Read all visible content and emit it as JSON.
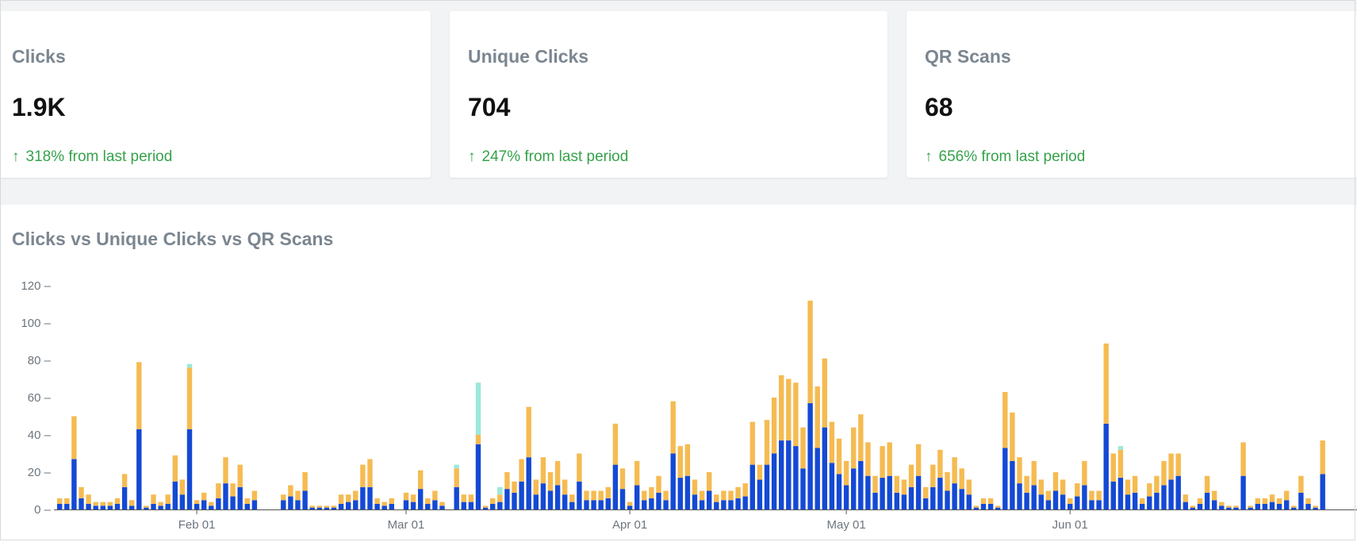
{
  "cards": [
    {
      "title": "Clicks",
      "value": "1.9K",
      "delta_arrow": "↑",
      "delta_text": "318% from last period"
    },
    {
      "title": "Unique Clicks",
      "value": "704",
      "delta_arrow": "↑",
      "delta_text": "247% from last period"
    },
    {
      "title": "QR Scans",
      "value": "68",
      "delta_arrow": "↑",
      "delta_text": "656% from last period"
    }
  ],
  "chart_title": "Clicks vs Unique Clicks vs QR Scans",
  "colors": {
    "unique": "#1449d4",
    "clicks": "#f5bb52",
    "qr": "#9be8dc",
    "delta_green": "#35a24b",
    "muted_text": "#7b8690"
  },
  "chart_data": {
    "type": "bar",
    "stacked": true,
    "title": "Clicks vs Unique Clicks vs QR Scans",
    "x_start": "2024-01-13",
    "x_end": "2024-06-24",
    "x_tick_labels": [
      "Feb 01",
      "Mar 01",
      "Apr 01",
      "May 01",
      "Jun 01"
    ],
    "x_tick_dates": [
      "2024-02-01",
      "2024-03-01",
      "2024-04-01",
      "2024-05-01",
      "2024-06-01"
    ],
    "y_ticks": [
      0,
      20,
      40,
      60,
      80,
      100,
      120
    ],
    "ylim": [
      0,
      120
    ],
    "series": [
      {
        "key": "unique",
        "values": [
          3,
          3,
          27,
          6,
          3,
          2,
          2,
          2,
          3,
          12,
          2,
          43,
          1,
          3,
          2,
          3,
          15,
          8,
          43,
          3,
          5,
          2,
          6,
          14,
          7,
          12,
          3,
          5,
          0,
          0,
          0,
          5,
          7,
          5,
          10,
          1,
          1,
          1,
          1,
          3,
          4,
          5,
          12,
          12,
          3,
          2,
          3,
          0,
          5,
          4,
          11,
          3,
          5,
          2,
          0,
          12,
          4,
          4,
          35,
          1,
          3,
          4,
          11,
          9,
          15,
          28,
          8,
          14,
          10,
          13,
          8,
          4,
          15,
          5,
          5,
          5,
          6,
          24,
          11,
          2,
          13,
          5,
          6,
          9,
          5,
          30,
          17,
          18,
          8,
          5,
          10,
          4,
          5,
          5,
          6,
          7,
          24,
          16,
          24,
          30,
          37,
          37,
          34,
          22,
          57,
          33,
          44,
          25,
          19,
          13,
          22,
          26,
          18,
          9,
          17,
          18,
          9,
          8,
          12,
          18,
          6,
          12,
          17,
          10,
          14,
          11,
          8,
          1,
          3,
          3,
          1,
          33,
          26,
          14,
          9,
          13,
          8,
          5,
          10,
          8,
          3,
          7,
          13,
          5,
          5,
          46,
          15,
          17,
          8,
          9,
          3,
          7,
          9,
          13,
          16,
          18,
          4,
          1,
          3,
          9,
          5,
          2,
          1,
          1,
          18,
          1,
          3,
          3,
          4,
          3,
          5,
          1,
          9,
          3,
          1,
          19
        ],
        "name": ""
      },
      {
        "key": "clicks",
        "values": [
          3,
          3,
          23,
          6,
          5,
          2,
          2,
          2,
          3,
          7,
          3,
          36,
          1,
          5,
          2,
          5,
          14,
          8,
          33,
          2,
          4,
          2,
          8,
          14,
          7,
          12,
          3,
          5,
          0,
          0,
          0,
          3,
          6,
          5,
          10,
          1,
          1,
          1,
          1,
          5,
          4,
          5,
          12,
          15,
          3,
          2,
          3,
          0,
          4,
          4,
          10,
          3,
          5,
          2,
          0,
          10,
          4,
          4,
          5,
          1,
          3,
          4,
          9,
          6,
          12,
          27,
          8,
          14,
          10,
          13,
          8,
          4,
          15,
          5,
          5,
          5,
          6,
          22,
          11,
          2,
          13,
          5,
          6,
          9,
          5,
          28,
          17,
          17,
          8,
          5,
          10,
          4,
          5,
          5,
          6,
          7,
          23,
          8,
          24,
          30,
          35,
          33,
          34,
          22,
          55,
          33,
          37,
          22,
          19,
          13,
          22,
          25,
          18,
          9,
          17,
          18,
          9,
          8,
          12,
          17,
          6,
          12,
          15,
          10,
          14,
          11,
          8,
          1,
          3,
          3,
          1,
          30,
          26,
          14,
          9,
          13,
          8,
          5,
          10,
          8,
          3,
          7,
          13,
          5,
          5,
          43,
          15,
          15,
          8,
          9,
          3,
          7,
          9,
          13,
          14,
          12,
          4,
          1,
          3,
          9,
          5,
          2,
          1,
          1,
          18,
          1,
          3,
          3,
          4,
          3,
          5,
          1,
          9,
          3,
          1,
          18
        ],
        "name": ""
      },
      {
        "key": "qr",
        "values": [
          0,
          0,
          0,
          0,
          0,
          0,
          0,
          0,
          0,
          0,
          0,
          0,
          0,
          0,
          0,
          0,
          0,
          0,
          2,
          0,
          0,
          0,
          0,
          0,
          0,
          0,
          0,
          0,
          0,
          0,
          0,
          0,
          0,
          0,
          0,
          0,
          0,
          0,
          0,
          0,
          0,
          0,
          0,
          0,
          0,
          0,
          0,
          0,
          0,
          0,
          0,
          0,
          0,
          0,
          0,
          2,
          0,
          0,
          28,
          0,
          0,
          4,
          0,
          0,
          0,
          0,
          0,
          0,
          0,
          0,
          0,
          0,
          0,
          0,
          0,
          0,
          0,
          0,
          0,
          0,
          0,
          0,
          0,
          0,
          0,
          0,
          0,
          0,
          0,
          0,
          0,
          0,
          0,
          0,
          0,
          0,
          0,
          0,
          0,
          0,
          0,
          0,
          0,
          0,
          0,
          0,
          0,
          0,
          0,
          0,
          0,
          0,
          0,
          0,
          0,
          0,
          0,
          0,
          0,
          0,
          0,
          0,
          0,
          0,
          0,
          0,
          0,
          0,
          0,
          0,
          0,
          0,
          0,
          0,
          0,
          0,
          0,
          0,
          0,
          0,
          0,
          0,
          0,
          0,
          0,
          0,
          0,
          2,
          0,
          0,
          0,
          0,
          0,
          0,
          0,
          0,
          0,
          0,
          0,
          0,
          0,
          0,
          0,
          0,
          0,
          0,
          0,
          0,
          0,
          0,
          0,
          0,
          0,
          0,
          0,
          0
        ],
        "name": ""
      }
    ]
  }
}
